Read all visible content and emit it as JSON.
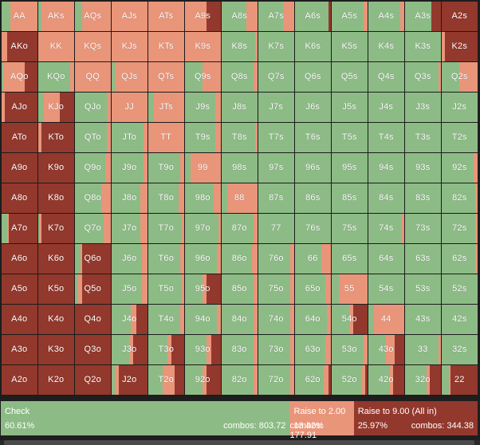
{
  "colors": {
    "check": "#8dbb86",
    "raise_small": "#e9957a",
    "raise_allin": "#93382c"
  },
  "ranks": [
    "A",
    "K",
    "Q",
    "J",
    "T",
    "9",
    "8",
    "7",
    "6",
    "5",
    "4",
    "3",
    "2"
  ],
  "hands": [
    [
      "AA",
      "AKs",
      "AQs",
      "AJs",
      "ATs",
      "A9s",
      "A8s",
      "A7s",
      "A6s",
      "A5s",
      "A4s",
      "A3s",
      "A2s"
    ],
    [
      "AKo",
      "KK",
      "KQs",
      "KJs",
      "KTs",
      "K9s",
      "K8s",
      "K7s",
      "K6s",
      "K5s",
      "K4s",
      "K3s",
      "K2s"
    ],
    [
      "AQo",
      "KQo",
      "QQ",
      "QJs",
      "QTs",
      "Q9s",
      "Q8s",
      "Q7s",
      "Q6s",
      "Q5s",
      "Q4s",
      "Q3s",
      "Q2s"
    ],
    [
      "AJo",
      "KJo",
      "QJo",
      "JJ",
      "JTs",
      "J9s",
      "J8s",
      "J7s",
      "J6s",
      "J5s",
      "J4s",
      "J3s",
      "J2s"
    ],
    [
      "ATo",
      "KTo",
      "QTo",
      "JTo",
      "TT",
      "T9s",
      "T8s",
      "T7s",
      "T6s",
      "T5s",
      "T4s",
      "T3s",
      "T2s"
    ],
    [
      "A9o",
      "K9o",
      "Q9o",
      "J9o",
      "T9o",
      "99",
      "98s",
      "97s",
      "96s",
      "95s",
      "94s",
      "93s",
      "92s"
    ],
    [
      "A8o",
      "K8o",
      "Q8o",
      "J8o",
      "T8o",
      "98o",
      "88",
      "87s",
      "86s",
      "85s",
      "84s",
      "83s",
      "82s"
    ],
    [
      "A7o",
      "K7o",
      "Q7o",
      "J7o",
      "T7o",
      "97o",
      "87o",
      "77",
      "76s",
      "75s",
      "74s",
      "73s",
      "72s"
    ],
    [
      "A6o",
      "K6o",
      "Q6o",
      "J6o",
      "T6o",
      "96o",
      "86o",
      "76o",
      "66",
      "65s",
      "64s",
      "63s",
      "62s"
    ],
    [
      "A5o",
      "K5o",
      "Q5o",
      "J5o",
      "T5o",
      "95o",
      "85o",
      "75o",
      "65o",
      "55",
      "54s",
      "53s",
      "52s"
    ],
    [
      "A4o",
      "K4o",
      "Q4o",
      "J4o",
      "T4o",
      "94o",
      "84o",
      "74o",
      "64o",
      "54o",
      "44",
      "43s",
      "42s"
    ],
    [
      "A3o",
      "K3o",
      "Q3o",
      "J3o",
      "T3o",
      "93o",
      "83o",
      "73o",
      "63o",
      "53o",
      "43o",
      "33",
      "32s"
    ],
    [
      "A2o",
      "K2o",
      "Q2o",
      "J2o",
      "T2o",
      "92o",
      "82o",
      "72o",
      "62o",
      "52o",
      "42o",
      "32o",
      "22"
    ]
  ],
  "mix": [
    [
      [
        0.25,
        0.75,
        0
      ],
      [
        0.1,
        0.9,
        0
      ],
      [
        0.2,
        0.8,
        0
      ],
      [
        0,
        1,
        0
      ],
      [
        0,
        1,
        0
      ],
      [
        0,
        0.6,
        0.4
      ],
      [
        0.7,
        0.3,
        0
      ],
      [
        0.7,
        0.3,
        0
      ],
      [
        0.95,
        0,
        0.05
      ],
      [
        0.9,
        0.1,
        0
      ],
      [
        0.9,
        0.1,
        0
      ],
      [
        0.75,
        0,
        0.25
      ],
      [
        0,
        0,
        1
      ]
    ],
    [
      [
        0,
        0.15,
        0.85
      ],
      [
        0,
        1,
        0
      ],
      [
        0,
        1,
        0
      ],
      [
        0,
        1,
        0
      ],
      [
        0,
        1,
        0
      ],
      [
        0,
        1,
        0
      ],
      [
        0.95,
        0.05,
        0
      ],
      [
        1,
        0,
        0
      ],
      [
        1,
        0,
        0
      ],
      [
        1,
        0,
        0
      ],
      [
        1,
        0,
        0
      ],
      [
        1,
        0,
        0
      ],
      [
        0,
        0.1,
        0.9
      ]
    ],
    [
      [
        0.05,
        0.6,
        0.35
      ],
      [
        0.9,
        0.1,
        0
      ],
      [
        0,
        1,
        0
      ],
      [
        0.1,
        0.9,
        0
      ],
      [
        0,
        1,
        0
      ],
      [
        0.5,
        0.5,
        0
      ],
      [
        0.9,
        0.1,
        0
      ],
      [
        1,
        0,
        0
      ],
      [
        1,
        0,
        0
      ],
      [
        1,
        0,
        0
      ],
      [
        1,
        0,
        0
      ],
      [
        0.95,
        0.05,
        0
      ],
      [
        0.5,
        0.5,
        0
      ]
    ],
    [
      [
        0,
        0.1,
        0.9
      ],
      [
        0.15,
        0.45,
        0.4
      ],
      [
        0.9,
        0.1,
        0
      ],
      [
        0,
        1,
        0
      ],
      [
        0.15,
        0.85,
        0
      ],
      [
        0.85,
        0.15,
        0
      ],
      [
        1,
        0,
        0
      ],
      [
        1,
        0,
        0
      ],
      [
        1,
        0,
        0
      ],
      [
        1,
        0,
        0
      ],
      [
        1,
        0,
        0
      ],
      [
        1,
        0,
        0
      ],
      [
        1,
        0,
        0
      ]
    ],
    [
      [
        0,
        0,
        1
      ],
      [
        0,
        0.1,
        0.9
      ],
      [
        0.9,
        0.1,
        0
      ],
      [
        0.9,
        0.1,
        0
      ],
      [
        0,
        1,
        0
      ],
      [
        0.85,
        0.15,
        0
      ],
      [
        0.95,
        0.05,
        0
      ],
      [
        1,
        0,
        0
      ],
      [
        1,
        0,
        0
      ],
      [
        1,
        0,
        0
      ],
      [
        1,
        0,
        0
      ],
      [
        1,
        0,
        0
      ],
      [
        1,
        0,
        0
      ]
    ],
    [
      [
        0,
        0,
        1
      ],
      [
        0,
        0,
        1
      ],
      [
        0.85,
        0.15,
        0
      ],
      [
        0.9,
        0.1,
        0
      ],
      [
        0.9,
        0.1,
        0
      ],
      [
        0.15,
        0.85,
        0
      ],
      [
        1,
        0,
        0
      ],
      [
        1,
        0,
        0
      ],
      [
        1,
        0,
        0
      ],
      [
        1,
        0,
        0
      ],
      [
        1,
        0,
        0
      ],
      [
        1,
        0,
        0
      ],
      [
        0.9,
        0.1,
        0
      ]
    ],
    [
      [
        0,
        0,
        1
      ],
      [
        0,
        0,
        1
      ],
      [
        0.75,
        0.25,
        0
      ],
      [
        0.8,
        0.2,
        0
      ],
      [
        0.85,
        0.15,
        0
      ],
      [
        0.8,
        0.2,
        0
      ],
      [
        0.15,
        0.85,
        0
      ],
      [
        1,
        0,
        0
      ],
      [
        1,
        0,
        0
      ],
      [
        1,
        0,
        0
      ],
      [
        1,
        0,
        0
      ],
      [
        1,
        0,
        0
      ],
      [
        0.95,
        0.05,
        0
      ]
    ],
    [
      [
        0.15,
        0.05,
        0.8
      ],
      [
        0.05,
        0.05,
        0.9
      ],
      [
        0.8,
        0.2,
        0
      ],
      [
        0.8,
        0.2,
        0
      ],
      [
        0.95,
        0.05,
        0
      ],
      [
        0.95,
        0.05,
        0
      ],
      [
        0.9,
        0.1,
        0
      ],
      [
        1,
        0,
        0
      ],
      [
        1,
        0,
        0
      ],
      [
        1,
        0,
        0
      ],
      [
        0.95,
        0.05,
        0
      ],
      [
        1,
        0,
        0
      ],
      [
        0.95,
        0.05,
        0
      ]
    ],
    [
      [
        0,
        0,
        1
      ],
      [
        0,
        0,
        1
      ],
      [
        0.15,
        0.05,
        0.8
      ],
      [
        0.85,
        0.15,
        0
      ],
      [
        0.9,
        0.1,
        0
      ],
      [
        0.9,
        0.1,
        0
      ],
      [
        0.85,
        0.15,
        0
      ],
      [
        0.9,
        0.1,
        0
      ],
      [
        0.75,
        0.25,
        0
      ],
      [
        1,
        0,
        0
      ],
      [
        1,
        0,
        0
      ],
      [
        1,
        0,
        0
      ],
      [
        0.95,
        0.05,
        0
      ]
    ],
    [
      [
        0,
        0,
        1
      ],
      [
        0,
        0,
        1
      ],
      [
        0.1,
        0.1,
        0.8
      ],
      [
        0.85,
        0.15,
        0
      ],
      [
        0.95,
        0.05,
        0
      ],
      [
        0.5,
        0.1,
        0.4
      ],
      [
        0.9,
        0.1,
        0
      ],
      [
        0.9,
        0.1,
        0
      ],
      [
        0.85,
        0.15,
        0
      ],
      [
        0.2,
        0.8,
        0
      ],
      [
        1,
        0,
        0
      ],
      [
        1,
        0,
        0
      ],
      [
        1,
        0,
        0
      ]
    ],
    [
      [
        0,
        0,
        1
      ],
      [
        0,
        0,
        1
      ],
      [
        0,
        0,
        1
      ],
      [
        0.55,
        0.15,
        0.3
      ],
      [
        0.9,
        0.1,
        0
      ],
      [
        0.9,
        0.1,
        0
      ],
      [
        0.9,
        0.1,
        0
      ],
      [
        0.9,
        0.1,
        0
      ],
      [
        0.9,
        0.1,
        0
      ],
      [
        0.5,
        0.1,
        0.4
      ],
      [
        0.15,
        0.85,
        0
      ],
      [
        1,
        0,
        0
      ],
      [
        1,
        0,
        0
      ]
    ],
    [
      [
        0,
        0,
        1
      ],
      [
        0,
        0,
        1
      ],
      [
        0,
        0,
        1
      ],
      [
        0.5,
        0.1,
        0.4
      ],
      [
        0.55,
        0.1,
        0.35
      ],
      [
        0.6,
        0.15,
        0.25
      ],
      [
        0.9,
        0.1,
        0
      ],
      [
        0.9,
        0.1,
        0
      ],
      [
        0.85,
        0.15,
        0
      ],
      [
        0.9,
        0.1,
        0
      ],
      [
        0.5,
        0.25,
        0.25
      ],
      [
        0.95,
        0.05,
        0
      ],
      [
        1,
        0,
        0
      ]
    ],
    [
      [
        0,
        0,
        1
      ],
      [
        0,
        0,
        1
      ],
      [
        0,
        0,
        1
      ],
      [
        0.1,
        0.1,
        0.8
      ],
      [
        0.4,
        0.35,
        0.25
      ],
      [
        0.5,
        0.1,
        0.4
      ],
      [
        0.9,
        0.1,
        0
      ],
      [
        0.9,
        0.1,
        0
      ],
      [
        0.8,
        0.15,
        0.05
      ],
      [
        0.85,
        0.1,
        0.05
      ],
      [
        0.6,
        0.1,
        0.3
      ],
      [
        0.6,
        0.1,
        0.3
      ],
      [
        0.2,
        0.05,
        0.75
      ]
    ]
  ],
  "actions": [
    {
      "name": "Check",
      "percent": "60.61%",
      "combos": "combos: 803.72",
      "share": 0.6061,
      "color": "#8dbb86"
    },
    {
      "name": "Raise to 2.00",
      "percent": "13.42%",
      "combos": "combos: 177.91",
      "share": 0.1342,
      "color": "#e9957a"
    },
    {
      "name": "Raise to 9.00 (All in)",
      "percent": "25.97%",
      "combos": "combos: 344.38",
      "share": 0.2597,
      "color": "#93382c"
    }
  ]
}
